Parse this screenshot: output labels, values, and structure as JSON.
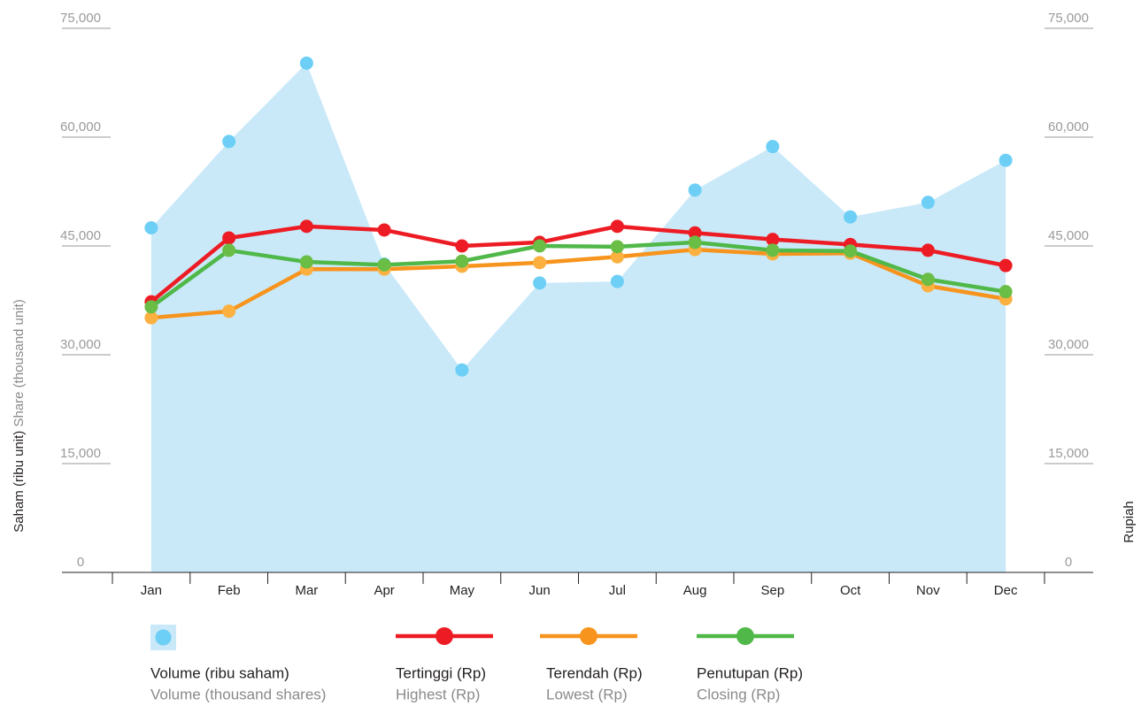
{
  "chart_data": {
    "type": "line",
    "categories": [
      "Jan",
      "Feb",
      "Mar",
      "Apr",
      "May",
      "Jun",
      "Jul",
      "Aug",
      "Sep",
      "Oct",
      "Nov",
      "Dec"
    ],
    "y_label": "Saham (ribu unit)",
    "y_label_en": "Share (thousand unit)",
    "y2_label": "Rupiah",
    "ylim": [
      0,
      75000
    ],
    "yticks": [
      0,
      {
        "value": 15000,
        "label": "15,000"
      },
      {
        "value": 30000,
        "label": "30,000"
      },
      {
        "value": 45000,
        "label": "45,000"
      },
      {
        "value": 60000,
        "label": "60,000"
      },
      {
        "value": 75000,
        "label": "75,000"
      }
    ],
    "y2lim": [
      0,
      75000
    ],
    "y2ticks": [
      0,
      {
        "value": 15000,
        "label": "15,000"
      },
      {
        "value": 30000,
        "label": "30,000"
      },
      {
        "value": 45000,
        "label": "45,000"
      },
      {
        "value": 60000,
        "label": "60,000"
      },
      {
        "value": 75000,
        "label": "75,000"
      }
    ],
    "series": [
      {
        "name": "Volume (ribu saham)",
        "name_en": "Volume (thousand shares)",
        "kind": "area",
        "color": "#c9e9f9",
        "marker_color": "#6dcff6",
        "values": [
          47500,
          59400,
          70200,
          42500,
          27900,
          39900,
          40100,
          52700,
          58700,
          49000,
          51000,
          56800
        ]
      },
      {
        "name": "Tertinggi (Rp)",
        "name_en": "Highest (Rp)",
        "kind": "line",
        "axis": "y2",
        "color": "#ed1c24",
        "marker_color": "#ed1c24",
        "values": [
          37300,
          46100,
          47700,
          47200,
          45000,
          45500,
          47700,
          46800,
          45900,
          45200,
          44400,
          42300
        ]
      },
      {
        "name": "Terendah (Rp)",
        "name_en": "Lowest (Rp)",
        "kind": "line",
        "axis": "y2",
        "color": "#f7941d",
        "marker_color": "#fbb040",
        "values": [
          35100,
          36000,
          41800,
          41800,
          42200,
          42700,
          43500,
          44500,
          43900,
          44000,
          39500,
          37700
        ]
      },
      {
        "name": "Penutupan (Rp)",
        "name_en": "Closing (Rp)",
        "kind": "line",
        "axis": "y2",
        "color": "#4fb848",
        "marker_color": "#6abd45",
        "values": [
          36600,
          44400,
          42800,
          42400,
          42900,
          45000,
          44900,
          45500,
          44400,
          44300,
          40400,
          38700
        ]
      }
    ]
  }
}
